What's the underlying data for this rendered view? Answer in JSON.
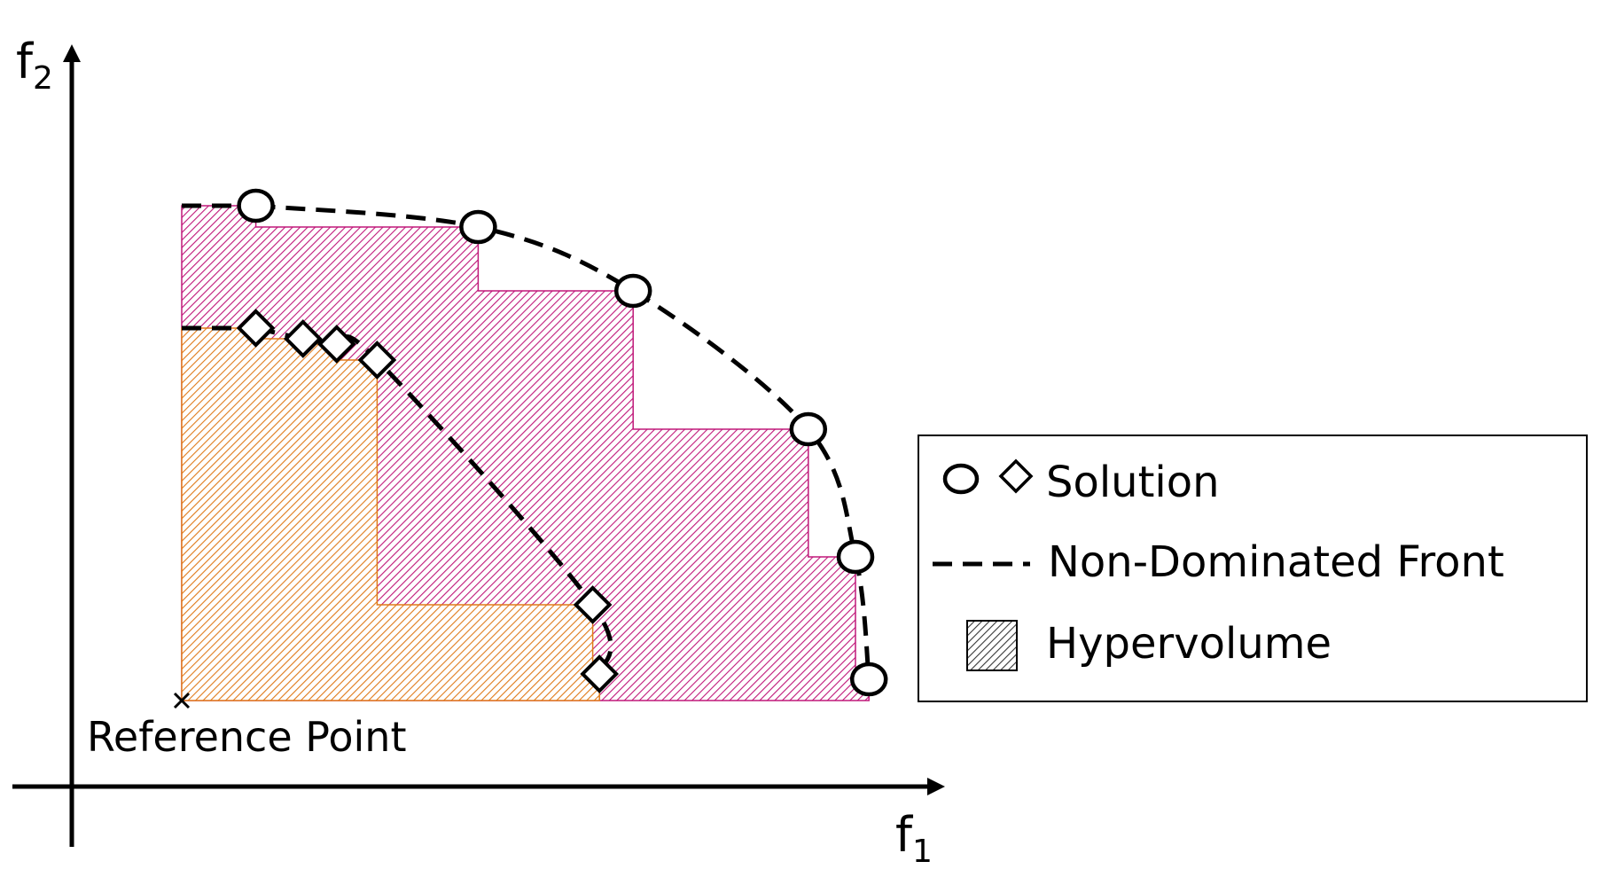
{
  "axes": {
    "x_label_main": "f",
    "x_label_sub": "1",
    "y_label_main": "f",
    "y_label_sub": "2"
  },
  "reference_point": {
    "label": "Reference Point"
  },
  "fronts": [
    {
      "marker": "circle",
      "hatch_color": "#c0187a",
      "points": [
        [
          0.11,
          0.93
        ],
        [
          0.44,
          0.89
        ],
        [
          0.67,
          0.77
        ],
        [
          0.93,
          0.51
        ],
        [
          1.0,
          0.27
        ],
        [
          1.02,
          0.04
        ]
      ]
    },
    {
      "marker": "diamond",
      "hatch_color": "#e07a1a",
      "points": [
        [
          0.11,
          0.7
        ],
        [
          0.18,
          0.68
        ],
        [
          0.23,
          0.67
        ],
        [
          0.29,
          0.64
        ],
        [
          0.61,
          0.18
        ],
        [
          0.62,
          0.05
        ]
      ]
    }
  ],
  "legend": {
    "items": [
      {
        "symbol": "circle-diamond-icon",
        "label": "Solution"
      },
      {
        "symbol": "dashed-line-icon",
        "label": "Non-Dominated Front"
      },
      {
        "symbol": "hatched-square-icon",
        "label": "Hypervolume"
      }
    ]
  },
  "colors": {
    "axis": "#000000",
    "outer_hatch": "#c0187a",
    "inner_hatch": "#e07a1a"
  }
}
